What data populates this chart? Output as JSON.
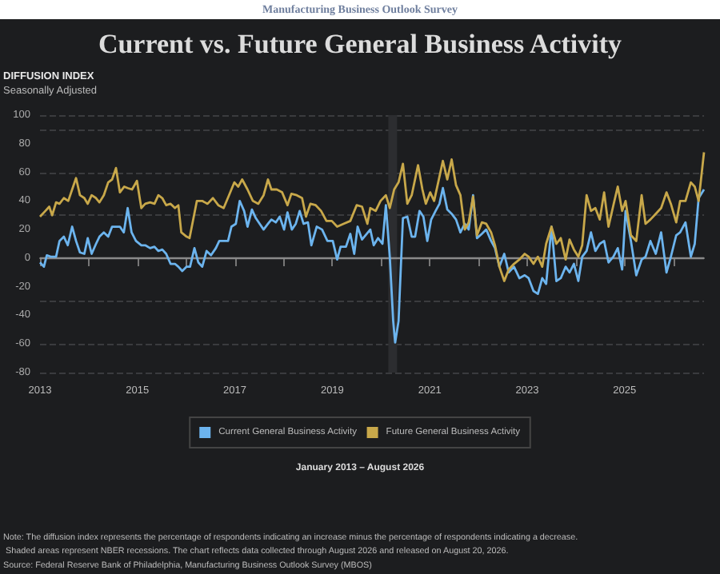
{
  "chart_data": {
    "type": "line",
    "title": "Current vs. Future General Business Activity",
    "subtitle": "Seasonally Adjusted",
    "ylabel": "DIFFUSION INDEX",
    "series": [
      {
        "name": "Current General Business Activity",
        "color": "#6cb4ee",
        "x": [
          2013.0,
          2013.08,
          2013.14,
          2013.22,
          2013.33,
          2013.4,
          2013.49,
          2013.57,
          2013.66,
          2013.74,
          2013.82,
          2013.91,
          2013.98,
          2014.06,
          2014.15,
          2014.22,
          2014.31,
          2014.4,
          2014.48,
          2014.56,
          2014.64,
          2014.72,
          2014.8,
          2014.88,
          2014.97,
          2015.08,
          2015.16,
          2015.26,
          2015.35,
          2015.43,
          2015.51,
          2015.59,
          2015.68,
          2015.77,
          2015.84,
          2015.92,
          2016.01,
          2016.08,
          2016.17,
          2016.25,
          2016.33,
          2016.42,
          2016.51,
          2016.61,
          2016.68,
          2016.77,
          2016.86,
          2016.93,
          2017.02,
          2017.1,
          2017.19,
          2017.26,
          2017.35,
          2017.43,
          2017.51,
          2017.59,
          2017.68,
          2017.75,
          2017.84,
          2017.92,
          2018.01,
          2018.08,
          2018.17,
          2018.25,
          2018.33,
          2018.41,
          2018.5,
          2018.57,
          2018.68,
          2018.79,
          2018.9,
          2019.01,
          2019.1,
          2019.17,
          2019.28,
          2019.37,
          2019.45,
          2019.52,
          2019.61,
          2019.78,
          2019.85,
          2019.94,
          2020.03,
          2020.1,
          2020.18,
          2020.25,
          2020.29,
          2020.36,
          2020.45,
          2020.54,
          2020.63,
          2020.7,
          2020.79,
          2020.87,
          2020.95,
          2021.03,
          2021.12,
          2021.2,
          2021.27,
          2021.36,
          2021.45,
          2021.54,
          2021.63,
          2021.72,
          2021.8,
          2021.89,
          2021.97,
          2022.07,
          2022.16,
          2022.26,
          2022.34,
          2022.43,
          2022.53,
          2022.62,
          2022.73,
          2022.84,
          2022.95,
          2023.03,
          2023.13,
          2023.22,
          2023.31,
          2023.39,
          2023.5,
          2023.6,
          2023.69,
          2023.79,
          2023.87,
          2023.96,
          2024.05,
          2024.13,
          2024.22,
          2024.31,
          2024.4,
          2024.49,
          2024.58,
          2024.67,
          2024.77,
          2024.86,
          2024.95,
          2025.02,
          2025.13,
          2025.24,
          2025.35,
          2025.43,
          2025.53,
          2025.64,
          2025.75,
          2025.86,
          2025.95,
          2026.06,
          2026.14,
          2026.25,
          2026.36,
          2026.44,
          2026.52,
          2026.63
        ],
        "values": [
          -3,
          -6,
          2,
          1,
          1,
          12,
          15,
          9,
          22,
          12,
          4,
          3,
          14,
          3,
          10,
          15,
          18,
          15,
          22,
          22,
          22,
          18,
          35,
          18,
          12,
          9,
          9,
          7,
          8,
          5,
          6,
          3,
          -4,
          -4,
          -6,
          -9,
          -6,
          -6,
          7,
          -3,
          -6,
          5,
          2,
          7,
          12,
          12,
          12,
          22,
          24,
          40,
          33,
          22,
          34,
          28,
          24,
          20,
          24,
          27,
          25,
          29,
          20,
          32,
          20,
          24,
          33,
          24,
          25,
          9,
          22,
          20,
          12,
          12,
          -1,
          8,
          8,
          17,
          3,
          22,
          13,
          20,
          9,
          14,
          10,
          37,
          1,
          -44,
          -59,
          -44,
          28,
          29,
          15,
          15,
          33,
          29,
          12,
          27,
          33,
          38,
          49,
          34,
          31,
          27,
          18,
          24,
          20,
          44,
          14,
          17,
          20,
          12,
          7,
          -6,
          3,
          -10,
          -6,
          -14,
          -12,
          -14,
          -23,
          -25,
          -14,
          -18,
          22,
          -16,
          -14,
          -6,
          -10,
          -4,
          -16,
          1,
          5,
          18,
          5,
          10,
          12,
          -3,
          1,
          7,
          -8,
          33,
          12,
          -12,
          -1,
          1,
          12,
          3,
          18,
          -10,
          1,
          16,
          18,
          25,
          1,
          10,
          42,
          48
        ]
      },
      {
        "name": "Future General Business Activity",
        "color": "#c8a84a",
        "x": [
          2013.0,
          2013.11,
          2013.19,
          2013.25,
          2013.33,
          2013.4,
          2013.49,
          2013.58,
          2013.66,
          2013.74,
          2013.82,
          2013.91,
          2013.98,
          2014.06,
          2014.15,
          2014.22,
          2014.31,
          2014.4,
          2014.48,
          2014.56,
          2014.64,
          2014.73,
          2014.8,
          2014.89,
          2014.99,
          2015.08,
          2015.16,
          2015.26,
          2015.35,
          2015.43,
          2015.51,
          2015.59,
          2015.68,
          2015.77,
          2015.84,
          2015.9,
          2016.01,
          2016.07,
          2016.22,
          2016.33,
          2016.44,
          2016.55,
          2016.66,
          2016.77,
          2016.88,
          2016.99,
          2017.07,
          2017.15,
          2017.26,
          2017.37,
          2017.48,
          2017.59,
          2017.68,
          2017.75,
          2017.86,
          2017.97,
          2018.08,
          2018.16,
          2018.27,
          2018.38,
          2018.46,
          2018.55,
          2018.66,
          2018.77,
          2018.88,
          2018.99,
          2019.1,
          2019.23,
          2019.37,
          2019.5,
          2019.61,
          2019.72,
          2019.78,
          2019.89,
          2019.99,
          2020.1,
          2020.18,
          2020.27,
          2020.36,
          2020.45,
          2020.54,
          2020.63,
          2020.76,
          2020.85,
          2020.92,
          2021.01,
          2021.09,
          2021.2,
          2021.27,
          2021.36,
          2021.45,
          2021.54,
          2021.63,
          2021.72,
          2021.8,
          2021.89,
          2021.97,
          2022.07,
          2022.16,
          2022.26,
          2022.34,
          2022.43,
          2022.53,
          2022.62,
          2022.73,
          2022.84,
          2022.95,
          2023.03,
          2023.13,
          2023.22,
          2023.31,
          2023.39,
          2023.5,
          2023.6,
          2023.69,
          2023.79,
          2023.87,
          2023.96,
          2024.05,
          2024.13,
          2024.22,
          2024.31,
          2024.4,
          2024.49,
          2024.58,
          2024.67,
          2024.77,
          2024.86,
          2024.95,
          2025.02,
          2025.13,
          2025.24,
          2025.35,
          2025.43,
          2025.53,
          2025.64,
          2025.75,
          2025.86,
          2025.95,
          2026.06,
          2026.14,
          2026.25,
          2026.36,
          2026.44,
          2026.52,
          2026.63
        ],
        "values": [
          29,
          33,
          36,
          30,
          39,
          38,
          42,
          40,
          48,
          56,
          44,
          42,
          38,
          44,
          42,
          39,
          44,
          53,
          55,
          63,
          46,
          50,
          49,
          48,
          54,
          35,
          38,
          39,
          38,
          44,
          42,
          37,
          38,
          35,
          37,
          18,
          15,
          14,
          40,
          40,
          38,
          42,
          37,
          35,
          44,
          53,
          50,
          55,
          48,
          40,
          38,
          44,
          55,
          48,
          48,
          46,
          37,
          45,
          44,
          42,
          29,
          38,
          37,
          33,
          26,
          26,
          22,
          24,
          26,
          37,
          36,
          24,
          35,
          33,
          40,
          44,
          35,
          48,
          53,
          66,
          38,
          44,
          65,
          48,
          38,
          46,
          40,
          57,
          68,
          55,
          69,
          51,
          44,
          20,
          25,
          43,
          16,
          25,
          24,
          18,
          9,
          -6,
          -16,
          -8,
          -4,
          -1,
          3,
          1,
          -4,
          1,
          -6,
          10,
          22,
          10,
          14,
          -1,
          13,
          6,
          1,
          9,
          44,
          33,
          35,
          27,
          46,
          22,
          37,
          50,
          33,
          40,
          16,
          12,
          44,
          24,
          27,
          31,
          35,
          46,
          38,
          25,
          40,
          40,
          53,
          50,
          40,
          74
        ]
      }
    ],
    "xlim": [
      2013,
      2026.63
    ],
    "xticks": [
      2013,
      {
        "value": 2014,
        "label": null
      },
      2015,
      {
        "value": 2016,
        "label": null
      },
      2017,
      {
        "value": 2018,
        "label": null
      },
      2019,
      {
        "value": 2020,
        "label": null
      },
      2021,
      {
        "value": 2022,
        "label": null
      },
      2023,
      {
        "value": 2024,
        "label": null
      },
      2025,
      {
        "value": 2026,
        "label": null
      }
    ],
    "ylim": [
      -80,
      100
    ],
    "yticks": [
      -80,
      -60,
      -40,
      -20,
      0,
      20,
      40,
      60,
      80,
      100
    ],
    "grid": "y",
    "legend": "bottom",
    "ref_lines": [
      {
        "axis": "y",
        "value": 0,
        "color": "#8a8a8a"
      }
    ],
    "bands": [
      {
        "axis": "x",
        "from": 2020.15,
        "to": 2020.33,
        "color": "#2c2d30"
      }
    ],
    "annotations": [
      "Manufacturing Business Outlook Survey",
      "January 2013 – August 2026",
      "Note: The diffusion index represents the percentage of respondents indicating an increase minus the percentage of respondents indicating a decrease. Shaded areas represent NBER recessions. The chart reflects data collected through August 2026 and released on August 20, 2026.",
      "Source: Federal Reserve Bank of Philadelphia, Manufacturing Business Outlook Survey (MBOS)"
    ]
  }
}
